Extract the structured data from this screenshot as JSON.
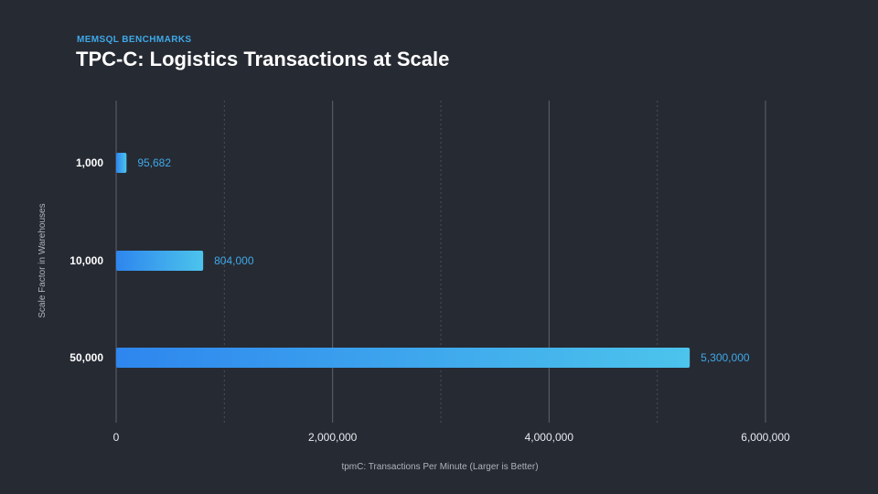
{
  "header": {
    "eyebrow": "MEMSQL BENCHMARKS",
    "title": "TPC-C: Logistics Transactions at Scale"
  },
  "colors": {
    "background": "#262a33",
    "bar_start": "#2e86ee",
    "bar_end": "#4cc4ec",
    "value_label": "#3fa9e8",
    "grid_solid": "#5f636b",
    "grid_dashed": "#4a4e56"
  },
  "chart_data": {
    "type": "bar",
    "orientation": "horizontal",
    "title": "TPC-C: Logistics Transactions at Scale",
    "xlabel": "tpmC: Transactions Per Minute (Larger is Better)",
    "ylabel": "Scale Factor in Warehouses",
    "categories": [
      "1,000",
      "10,000",
      "50,000"
    ],
    "values": [
      95682,
      804000,
      5300000
    ],
    "value_labels": [
      "95,682",
      "804,000",
      "5,300,000"
    ],
    "xlim": [
      0,
      6000000
    ],
    "major_ticks": [
      0,
      2000000,
      4000000,
      6000000
    ],
    "major_tick_labels": [
      "0",
      "2,000,000",
      "4,000,000",
      "6,000,000"
    ],
    "minor_ticks": [
      1000000,
      3000000,
      5000000
    ],
    "grid": true,
    "legend": "none"
  }
}
